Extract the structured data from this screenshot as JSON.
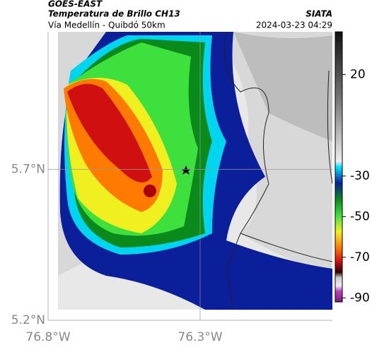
{
  "header": {
    "source": "GOES-EAST",
    "title": "Temperatura de Brillo CH13",
    "subtitle": "Vía Medellín - Quibdó 50km",
    "brand": "SIATA",
    "timestamp": "2024-03-23 04:29"
  },
  "map": {
    "lonlim": [
      76.8,
      75.865
    ],
    "latlim": [
      5.2,
      6.155
    ],
    "lon_ticks": [
      {
        "value": 76.8,
        "label": "76.8°W"
      },
      {
        "value": 76.3,
        "label": "76.3°W"
      }
    ],
    "lat_ticks": [
      {
        "value": 5.7,
        "label": "5.7°N"
      },
      {
        "value": 5.2,
        "label": "5.2°N"
      }
    ]
  },
  "colorbar": {
    "lim": [
      41,
      -92
    ],
    "ticks": [
      20,
      -30,
      -50,
      -70,
      -90
    ]
  }
}
